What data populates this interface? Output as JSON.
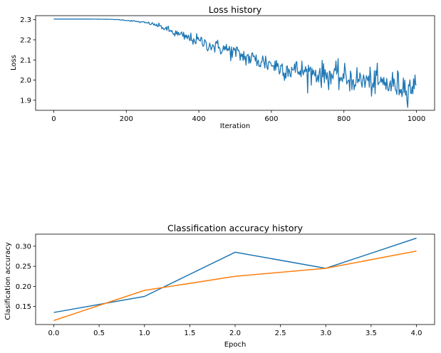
{
  "chart_data": [
    {
      "type": "line",
      "title": "Loss history",
      "xlabel": "Iteration",
      "ylabel": "Loss",
      "xlim": [
        -50,
        1050
      ],
      "ylim": [
        1.85,
        2.32
      ],
      "xticks": [
        0,
        200,
        400,
        600,
        800,
        1000
      ],
      "yticks": [
        1.9,
        2.0,
        2.1,
        2.2,
        2.3
      ],
      "xtick_labels": [
        "0",
        "200",
        "400",
        "600",
        "800",
        "1000"
      ],
      "ytick_labels": [
        "1.9",
        "2.0",
        "2.1",
        "2.2",
        "2.3"
      ],
      "grid": false,
      "legend": "none",
      "series": [
        {
          "color": "#1f77b4",
          "noisy": true,
          "x": [
            0,
            50,
            100,
            150,
            180,
            200,
            220,
            240,
            260,
            280,
            300,
            320,
            340,
            360,
            380,
            400,
            420,
            440,
            460,
            480,
            500,
            520,
            540,
            560,
            580,
            600,
            620,
            640,
            660,
            680,
            700,
            720,
            740,
            760,
            780,
            800,
            820,
            840,
            860,
            880,
            900,
            920,
            940,
            960,
            980,
            1000
          ],
          "values": [
            2.303,
            2.303,
            2.303,
            2.302,
            2.3,
            2.297,
            2.293,
            2.288,
            2.283,
            2.275,
            2.262,
            2.245,
            2.228,
            2.215,
            2.205,
            2.195,
            2.18,
            2.168,
            2.16,
            2.15,
            2.135,
            2.12,
            2.108,
            2.098,
            2.09,
            2.08,
            2.065,
            2.058,
            2.05,
            2.045,
            2.04,
            2.035,
            2.028,
            2.025,
            2.02,
            2.01,
            2.005,
            2.0,
            1.995,
            1.99,
            1.985,
            1.98,
            1.975,
            1.97,
            1.968,
            1.965
          ],
          "noise_amp": [
            0,
            0,
            0,
            0,
            0.001,
            0.002,
            0.003,
            0.004,
            0.006,
            0.008,
            0.012,
            0.016,
            0.02,
            0.022,
            0.024,
            0.026,
            0.028,
            0.03,
            0.032,
            0.034,
            0.036,
            0.038,
            0.04,
            0.042,
            0.044,
            0.045,
            0.046,
            0.047,
            0.048,
            0.049,
            0.05,
            0.051,
            0.052,
            0.053,
            0.054,
            0.055,
            0.056,
            0.057,
            0.058,
            0.058,
            0.059,
            0.06,
            0.06,
            0.06,
            0.06,
            0.06
          ]
        }
      ]
    },
    {
      "type": "line",
      "title": "Classification accuracy history",
      "xlabel": "Epoch",
      "ylabel": "Clasification accuracy",
      "xlim": [
        -0.2,
        4.2
      ],
      "ylim": [
        0.105,
        0.33
      ],
      "xticks": [
        0.0,
        0.5,
        1.0,
        1.5,
        2.0,
        2.5,
        3.0,
        3.5,
        4.0
      ],
      "yticks": [
        0.15,
        0.2,
        0.25,
        0.3
      ],
      "xtick_labels": [
        "0.0",
        "0.5",
        "1.0",
        "1.5",
        "2.0",
        "2.5",
        "3.0",
        "3.5",
        "4.0"
      ],
      "ytick_labels": [
        "0.15",
        "0.20",
        "0.25",
        "0.30"
      ],
      "grid": false,
      "legend": "none",
      "series": [
        {
          "color": "#1f77b4",
          "x": [
            0,
            1,
            2,
            3,
            4
          ],
          "values": [
            0.135,
            0.175,
            0.285,
            0.245,
            0.32
          ]
        },
        {
          "color": "#ff7f0e",
          "x": [
            0,
            1,
            2,
            3,
            4
          ],
          "values": [
            0.115,
            0.19,
            0.225,
            0.245,
            0.288
          ]
        }
      ]
    }
  ]
}
